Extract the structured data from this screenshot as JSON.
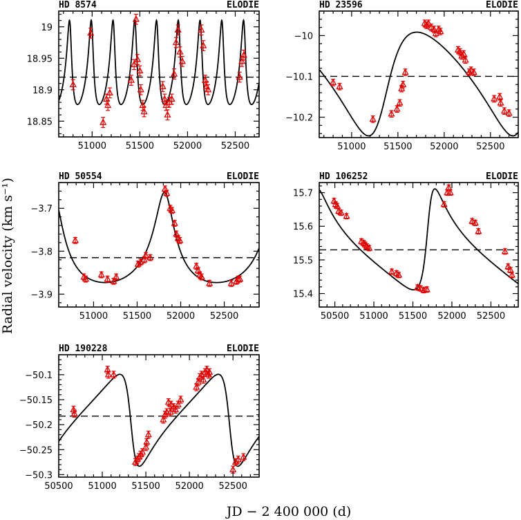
{
  "figure": {
    "ylabel": "Radial velocity (km s⁻¹)",
    "xlabel": "JD − 2 400 000 (d)"
  },
  "chart_data": [
    {
      "type": "scatter",
      "title": "HD 8574",
      "instrument": "ELODIE",
      "xlim": [
        50650,
        52750
      ],
      "ylim": [
        18.825,
        19.025
      ],
      "xticks": [
        51000,
        51500,
        52000,
        52500
      ],
      "yticks": [
        18.85,
        18.9,
        18.95,
        19
      ],
      "ytick_labels": [
        "18.85",
        "18.9",
        "18.95",
        "19"
      ],
      "mean": 18.92,
      "model": {
        "kind": "periodic",
        "period": 228.0,
        "ecc": 0.4,
        "K": 0.067,
        "omega": 0.5,
        "t0": 50770
      },
      "points": [
        {
          "x": 50800,
          "y": 18.908,
          "e": 0.008
        },
        {
          "x": 50985,
          "y": 18.99,
          "e": 0.008
        },
        {
          "x": 51115,
          "y": 18.848,
          "e": 0.008
        },
        {
          "x": 51150,
          "y": 18.885,
          "e": 0.008
        },
        {
          "x": 51165,
          "y": 18.875,
          "e": 0.008
        },
        {
          "x": 51185,
          "y": 18.895,
          "e": 0.008
        },
        {
          "x": 51410,
          "y": 18.915,
          "e": 0.008
        },
        {
          "x": 51440,
          "y": 18.94,
          "e": 0.008
        },
        {
          "x": 51460,
          "y": 19.012,
          "e": 0.008
        },
        {
          "x": 51475,
          "y": 18.948,
          "e": 0.008
        },
        {
          "x": 51500,
          "y": 18.93,
          "e": 0.008
        },
        {
          "x": 51510,
          "y": 18.9,
          "e": 0.008
        },
        {
          "x": 51530,
          "y": 18.875,
          "e": 0.008
        },
        {
          "x": 51545,
          "y": 18.865,
          "e": 0.008
        },
        {
          "x": 51740,
          "y": 18.905,
          "e": 0.008
        },
        {
          "x": 51760,
          "y": 18.885,
          "e": 0.008
        },
        {
          "x": 51775,
          "y": 18.875,
          "e": 0.008
        },
        {
          "x": 51790,
          "y": 18.86,
          "e": 0.008
        },
        {
          "x": 51810,
          "y": 18.88,
          "e": 0.008
        },
        {
          "x": 51835,
          "y": 18.885,
          "e": 0.008
        },
        {
          "x": 51860,
          "y": 18.925,
          "e": 0.008
        },
        {
          "x": 51880,
          "y": 18.975,
          "e": 0.008
        },
        {
          "x": 51900,
          "y": 18.995,
          "e": 0.008
        },
        {
          "x": 51920,
          "y": 18.96,
          "e": 0.008
        },
        {
          "x": 51945,
          "y": 18.945,
          "e": 0.008
        },
        {
          "x": 52145,
          "y": 18.995,
          "e": 0.008
        },
        {
          "x": 52165,
          "y": 18.97,
          "e": 0.008
        },
        {
          "x": 52185,
          "y": 18.915,
          "e": 0.008
        },
        {
          "x": 52200,
          "y": 18.905,
          "e": 0.008
        },
        {
          "x": 52215,
          "y": 18.9,
          "e": 0.008
        },
        {
          "x": 52545,
          "y": 18.92,
          "e": 0.008
        },
        {
          "x": 52570,
          "y": 18.945,
          "e": 0.008
        },
        {
          "x": 52590,
          "y": 18.955,
          "e": 0.008
        }
      ]
    },
    {
      "type": "scatter",
      "title": "HD 23596",
      "instrument": "ELODIE",
      "xlim": [
        50650,
        52800
      ],
      "ylim": [
        -10.25,
        -9.94
      ],
      "xticks": [
        51000,
        51500,
        52000,
        52500
      ],
      "yticks": [
        -10.2,
        -10.1,
        -10
      ],
      "ytick_labels": [
        "−10.2",
        "−10.1",
        "−10"
      ],
      "mean": -10.1,
      "model": {
        "kind": "periodic",
        "period": 1560,
        "ecc": 0.3,
        "K": 0.127,
        "omega": 4.2,
        "t0": 51330
      },
      "points": [
        {
          "x": 50800,
          "y": -10.115,
          "e": 0.008
        },
        {
          "x": 50870,
          "y": -10.125,
          "e": 0.008
        },
        {
          "x": 51230,
          "y": -10.205,
          "e": 0.008
        },
        {
          "x": 51430,
          "y": -10.192,
          "e": 0.008
        },
        {
          "x": 51490,
          "y": -10.18,
          "e": 0.008
        },
        {
          "x": 51520,
          "y": -10.165,
          "e": 0.008
        },
        {
          "x": 51540,
          "y": -10.13,
          "e": 0.008
        },
        {
          "x": 51555,
          "y": -10.12,
          "e": 0.008
        },
        {
          "x": 51580,
          "y": -10.09,
          "e": 0.008
        },
        {
          "x": 51790,
          "y": -9.97,
          "e": 0.008
        },
        {
          "x": 51810,
          "y": -9.975,
          "e": 0.008
        },
        {
          "x": 51830,
          "y": -9.97,
          "e": 0.008
        },
        {
          "x": 51860,
          "y": -9.98,
          "e": 0.008
        },
        {
          "x": 51890,
          "y": -9.985,
          "e": 0.008
        },
        {
          "x": 51910,
          "y": -9.995,
          "e": 0.008
        },
        {
          "x": 51940,
          "y": -9.985,
          "e": 0.008
        },
        {
          "x": 51960,
          "y": -9.99,
          "e": 0.008
        },
        {
          "x": 52150,
          "y": -10.035,
          "e": 0.008
        },
        {
          "x": 52170,
          "y": -10.04,
          "e": 0.008
        },
        {
          "x": 52190,
          "y": -10.05,
          "e": 0.008
        },
        {
          "x": 52210,
          "y": -10.045,
          "e": 0.008
        },
        {
          "x": 52230,
          "y": -10.06,
          "e": 0.008
        },
        {
          "x": 52270,
          "y": -10.09,
          "e": 0.008
        },
        {
          "x": 52290,
          "y": -10.085,
          "e": 0.008
        },
        {
          "x": 52320,
          "y": -10.09,
          "e": 0.008
        },
        {
          "x": 52540,
          "y": -10.155,
          "e": 0.008
        },
        {
          "x": 52600,
          "y": -10.15,
          "e": 0.008
        },
        {
          "x": 52610,
          "y": -10.165,
          "e": 0.008
        },
        {
          "x": 52650,
          "y": -10.185,
          "e": 0.008
        },
        {
          "x": 52700,
          "y": -10.19,
          "e": 0.008
        }
      ]
    },
    {
      "type": "scatter",
      "title": "HD 50554",
      "instrument": "ELODIE",
      "xlim": [
        50600,
        52900
      ],
      "ylim": [
        -3.93,
        -3.64
      ],
      "xticks": [
        51000,
        51500,
        52000,
        52500
      ],
      "yticks": [
        -3.9,
        -3.8,
        -3.7
      ],
      "ytick_labels": [
        "−3.9",
        "−3.8",
        "−3.7"
      ],
      "mean": -3.815,
      "model": {
        "kind": "periodic",
        "period": 1280,
        "ecc": 0.45,
        "K": 0.105,
        "omega": 0.1,
        "t0": 51820
      },
      "points": [
        {
          "x": 50790,
          "y": -3.775,
          "e": 0.007
        },
        {
          "x": 50890,
          "y": -3.86,
          "e": 0.007
        },
        {
          "x": 50910,
          "y": -3.865,
          "e": 0.007
        },
        {
          "x": 51090,
          "y": -3.855,
          "e": 0.007
        },
        {
          "x": 51160,
          "y": -3.865,
          "e": 0.007
        },
        {
          "x": 51230,
          "y": -3.87,
          "e": 0.007
        },
        {
          "x": 51260,
          "y": -3.86,
          "e": 0.007
        },
        {
          "x": 51510,
          "y": -3.83,
          "e": 0.007
        },
        {
          "x": 51540,
          "y": -3.825,
          "e": 0.007
        },
        {
          "x": 51580,
          "y": -3.82,
          "e": 0.007
        },
        {
          "x": 51600,
          "y": -3.81,
          "e": 0.007
        },
        {
          "x": 51650,
          "y": -3.815,
          "e": 0.007
        },
        {
          "x": 51820,
          "y": -3.655,
          "e": 0.007
        },
        {
          "x": 51840,
          "y": -3.665,
          "e": 0.007
        },
        {
          "x": 51880,
          "y": -3.7,
          "e": 0.007
        },
        {
          "x": 51900,
          "y": -3.705,
          "e": 0.007
        },
        {
          "x": 51930,
          "y": -3.735,
          "e": 0.007
        },
        {
          "x": 51950,
          "y": -3.76,
          "e": 0.007
        },
        {
          "x": 51970,
          "y": -3.77,
          "e": 0.007
        },
        {
          "x": 51990,
          "y": -3.775,
          "e": 0.007
        },
        {
          "x": 52180,
          "y": -3.835,
          "e": 0.007
        },
        {
          "x": 52200,
          "y": -3.845,
          "e": 0.007
        },
        {
          "x": 52220,
          "y": -3.855,
          "e": 0.007
        },
        {
          "x": 52240,
          "y": -3.86,
          "e": 0.007
        },
        {
          "x": 52330,
          "y": -3.875,
          "e": 0.007
        },
        {
          "x": 52580,
          "y": -3.875,
          "e": 0.007
        },
        {
          "x": 52640,
          "y": -3.87,
          "e": 0.007
        },
        {
          "x": 52660,
          "y": -3.865,
          "e": 0.007
        },
        {
          "x": 52680,
          "y": -3.865,
          "e": 0.007
        }
      ]
    },
    {
      "type": "scatter",
      "title": "HD 106252",
      "instrument": "ELODIE",
      "xlim": [
        50300,
        52850
      ],
      "ylim": [
        15.36,
        15.73
      ],
      "xticks": [
        50500,
        51000,
        51500,
        52000,
        52500
      ],
      "yticks": [
        15.4,
        15.5,
        15.6,
        15.7
      ],
      "ytick_labels": [
        "15.4",
        "15.5",
        "15.6",
        "15.7"
      ],
      "mean": 15.53,
      "model": {
        "kind": "periodic",
        "period": 1500,
        "ecc": 0.55,
        "K": 0.15,
        "omega": 5.1,
        "t0": 51700
      },
      "points": [
        {
          "x": 50490,
          "y": 15.675,
          "e": 0.008
        },
        {
          "x": 50510,
          "y": 15.665,
          "e": 0.008
        },
        {
          "x": 50530,
          "y": 15.66,
          "e": 0.008
        },
        {
          "x": 50550,
          "y": 15.645,
          "e": 0.008
        },
        {
          "x": 50580,
          "y": 15.64,
          "e": 0.008
        },
        {
          "x": 50650,
          "y": 15.63,
          "e": 0.008
        },
        {
          "x": 50840,
          "y": 15.555,
          "e": 0.008
        },
        {
          "x": 50870,
          "y": 15.55,
          "e": 0.008
        },
        {
          "x": 50890,
          "y": 15.545,
          "e": 0.008
        },
        {
          "x": 50910,
          "y": 15.54,
          "e": 0.008
        },
        {
          "x": 50940,
          "y": 15.535,
          "e": 0.008
        },
        {
          "x": 51230,
          "y": 15.465,
          "e": 0.008
        },
        {
          "x": 51290,
          "y": 15.46,
          "e": 0.008
        },
        {
          "x": 51320,
          "y": 15.455,
          "e": 0.008
        },
        {
          "x": 51560,
          "y": 15.418,
          "e": 0.008
        },
        {
          "x": 51600,
          "y": 15.415,
          "e": 0.008
        },
        {
          "x": 51640,
          "y": 15.41,
          "e": 0.008
        },
        {
          "x": 51680,
          "y": 15.412,
          "e": 0.008
        },
        {
          "x": 51900,
          "y": 15.665,
          "e": 0.008
        },
        {
          "x": 51940,
          "y": 15.7,
          "e": 0.008
        },
        {
          "x": 51960,
          "y": 15.715,
          "e": 0.008
        },
        {
          "x": 51980,
          "y": 15.7,
          "e": 0.008
        },
        {
          "x": 52260,
          "y": 15.615,
          "e": 0.008
        },
        {
          "x": 52300,
          "y": 15.61,
          "e": 0.008
        },
        {
          "x": 52340,
          "y": 15.585,
          "e": 0.008
        },
        {
          "x": 52680,
          "y": 15.525,
          "e": 0.008
        },
        {
          "x": 52720,
          "y": 15.48,
          "e": 0.008
        },
        {
          "x": 52750,
          "y": 15.47,
          "e": 0.008
        },
        {
          "x": 52770,
          "y": 15.455,
          "e": 0.008
        }
      ]
    },
    {
      "type": "scatter",
      "title": "HD 190228",
      "instrument": "ELODIE",
      "xlim": [
        50500,
        52800
      ],
      "ylim": [
        -50.305,
        -50.06
      ],
      "xticks": [
        50500,
        51000,
        51500,
        52000,
        52500
      ],
      "yticks": [
        -50.3,
        -50.25,
        -50.2,
        -50.15,
        -50.1
      ],
      "ytick_labels": [
        "−50.3",
        "−50.25",
        "−50.2",
        "−50.15",
        "−50.1"
      ],
      "mean": -50.183,
      "model": {
        "kind": "periodic",
        "period": 1130,
        "ecc": 0.5,
        "K": 0.092,
        "omega": 1.75,
        "t0": 51335
      },
      "points": [
        {
          "x": 50670,
          "y": -50.17,
          "e": 0.007
        },
        {
          "x": 50680,
          "y": -50.178,
          "e": 0.007
        },
        {
          "x": 51060,
          "y": -50.09,
          "e": 0.007
        },
        {
          "x": 51070,
          "y": -50.1,
          "e": 0.007
        },
        {
          "x": 51130,
          "y": -50.1,
          "e": 0.007
        },
        {
          "x": 51380,
          "y": -50.275,
          "e": 0.007
        },
        {
          "x": 51400,
          "y": -50.27,
          "e": 0.007
        },
        {
          "x": 51420,
          "y": -50.265,
          "e": 0.007
        },
        {
          "x": 51440,
          "y": -50.26,
          "e": 0.007
        },
        {
          "x": 51460,
          "y": -50.255,
          "e": 0.007
        },
        {
          "x": 51500,
          "y": -50.245,
          "e": 0.007
        },
        {
          "x": 51510,
          "y": -50.235,
          "e": 0.007
        },
        {
          "x": 51530,
          "y": -50.22,
          "e": 0.007
        },
        {
          "x": 51700,
          "y": -50.19,
          "e": 0.007
        },
        {
          "x": 51720,
          "y": -50.18,
          "e": 0.007
        },
        {
          "x": 51740,
          "y": -50.175,
          "e": 0.007
        },
        {
          "x": 51760,
          "y": -50.155,
          "e": 0.007
        },
        {
          "x": 51780,
          "y": -50.175,
          "e": 0.007
        },
        {
          "x": 51790,
          "y": -50.16,
          "e": 0.007
        },
        {
          "x": 51820,
          "y": -50.165,
          "e": 0.007
        },
        {
          "x": 51840,
          "y": -50.17,
          "e": 0.007
        },
        {
          "x": 51870,
          "y": -50.16,
          "e": 0.007
        },
        {
          "x": 51900,
          "y": -50.15,
          "e": 0.007
        },
        {
          "x": 52080,
          "y": -50.125,
          "e": 0.007
        },
        {
          "x": 52100,
          "y": -50.115,
          "e": 0.007
        },
        {
          "x": 52120,
          "y": -50.105,
          "e": 0.007
        },
        {
          "x": 52140,
          "y": -50.1,
          "e": 0.007
        },
        {
          "x": 52160,
          "y": -50.11,
          "e": 0.007
        },
        {
          "x": 52180,
          "y": -50.095,
          "e": 0.007
        },
        {
          "x": 52200,
          "y": -50.09,
          "e": 0.007
        },
        {
          "x": 52220,
          "y": -50.1,
          "e": 0.007
        },
        {
          "x": 52230,
          "y": -50.095,
          "e": 0.007
        },
        {
          "x": 52500,
          "y": -50.29,
          "e": 0.007
        },
        {
          "x": 52530,
          "y": -50.275,
          "e": 0.007
        },
        {
          "x": 52560,
          "y": -50.27,
          "e": 0.007
        },
        {
          "x": 52620,
          "y": -50.265,
          "e": 0.007
        }
      ]
    }
  ]
}
